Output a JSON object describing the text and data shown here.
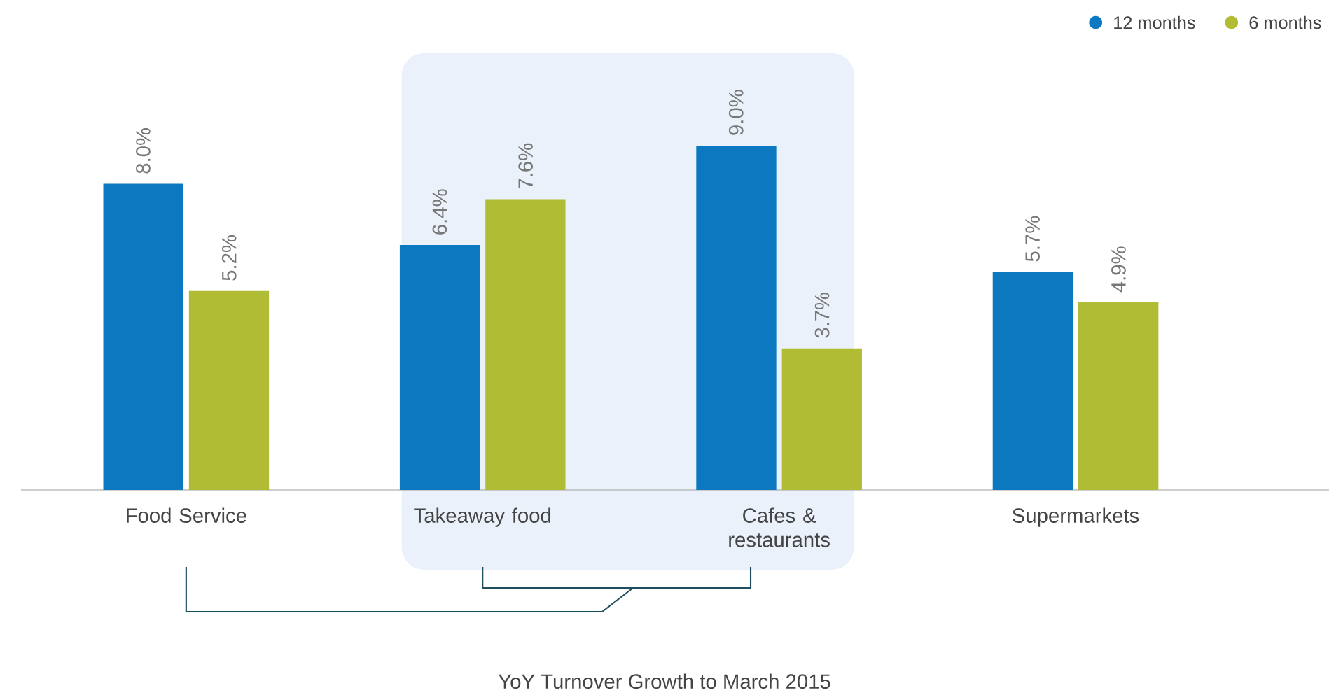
{
  "chart_data": {
    "type": "bar",
    "title": "YoY Turnover Growth to March 2015",
    "categories": [
      "Food Service",
      "Takeaway food",
      "Cafes & restaurants",
      "Supermarkets"
    ],
    "series": [
      {
        "name": "12 months",
        "color": "#0b78c0",
        "values": [
          8.0,
          6.4,
          9.0,
          5.7
        ],
        "value_labels": [
          "8.0%",
          "6.4%",
          "9.0%",
          "5.7%"
        ]
      },
      {
        "name": "6 months",
        "color": "#b0bc34",
        "values": [
          5.2,
          7.6,
          3.7,
          4.9
        ],
        "value_labels": [
          "5.2%",
          "7.6%",
          "3.7%",
          "4.9%"
        ]
      }
    ],
    "legend": "top right",
    "grid": false
  }
}
